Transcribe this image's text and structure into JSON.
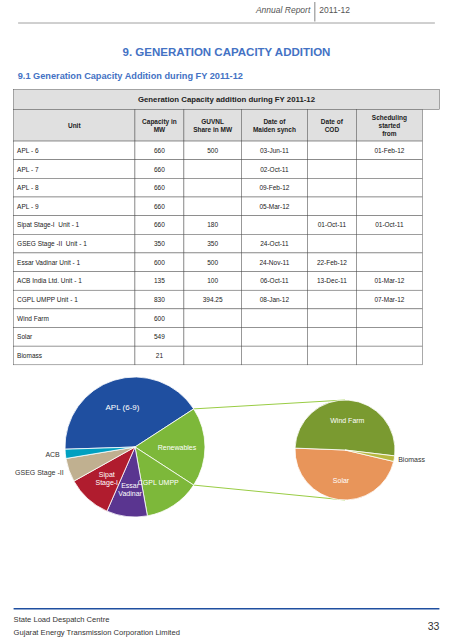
{
  "header": {
    "text": "Annual Report",
    "year": "2011-12"
  },
  "title": "9. GENERATION CAPACITY ADDITION",
  "subtitle": "9.1 Generation Capacity Addition during FY 2011-12",
  "footer": {
    "left": [
      "State Load Despatch Centre",
      "Gujarat Energy Transmission Corporation Limited"
    ],
    "right": "33"
  },
  "chart_data": [
    {
      "type": "table",
      "title": "Generation Capacity addition during FY 2011-12",
      "columns": [
        "Unit",
        "Capacity in\nMW",
        "GUVNL\nShare in MW",
        "Date of\nMaiden synch",
        "Date of\nCOD",
        "Scheduling\nstarted\nfrom"
      ],
      "rows": [
        [
          "APL - 6",
          "660",
          "500",
          "03-Jun-11",
          null,
          "01-Feb-12"
        ],
        [
          "APL - 7",
          "660",
          null,
          "02-Oct-11",
          null,
          null
        ],
        [
          "APL - 8",
          "660",
          null,
          "09-Feb-12",
          null,
          null
        ],
        [
          "APL - 9",
          "660",
          null,
          "05-Mar-12",
          null,
          null
        ],
        [
          "Sipat Stage-I  Unit - 1",
          "660",
          "180",
          null,
          "01-Oct-11",
          "01-Oct-11"
        ],
        [
          "GSEG Stage -II  Unit - 1",
          "350",
          "350",
          "24-Oct-11",
          null,
          null
        ],
        [
          "Essar Vadinar Unit - 1",
          "600",
          "500",
          "24-Nov-11",
          "22-Feb-12",
          null
        ],
        [
          "ACB India Ltd. Unit - 1",
          "135",
          "100",
          "06-Oct-11",
          "13-Dec-11",
          "01-Mar-12"
        ],
        [
          "CGPL UMPP Unit - 1",
          "830",
          "394.25",
          "08-Jan-12",
          null,
          "07-Mar-12"
        ],
        [
          "Wind Farm",
          "600",
          null,
          null,
          null,
          null
        ],
        [
          "Solar",
          "549",
          null,
          null,
          null,
          null
        ],
        [
          "Biomass",
          "21",
          null,
          null,
          null,
          null
        ]
      ]
    },
    {
      "type": "pie",
      "categories": [
        "APL (6-9)",
        "Renewables",
        "CGPL UMPP",
        "Essar\nVadinar",
        "Sipat\nStage-I",
        "GSEG Stage -II",
        "ACB"
      ],
      "values": [
        2640,
        1170,
        830,
        600,
        660,
        350,
        135
      ],
      "colors": [
        "#1f4fa0",
        "#7db83a",
        "#7db83a",
        "#5a3590",
        "#b01c2e",
        "#c0b090",
        "#00a0c0"
      ]
    },
    {
      "type": "pie",
      "categories": [
        "Solar",
        "Wind Farm",
        "Biomass"
      ],
      "values": [
        549,
        600,
        21
      ],
      "colors": [
        "#e8955a",
        "#7a9a30",
        "#b8b840"
      ]
    }
  ]
}
